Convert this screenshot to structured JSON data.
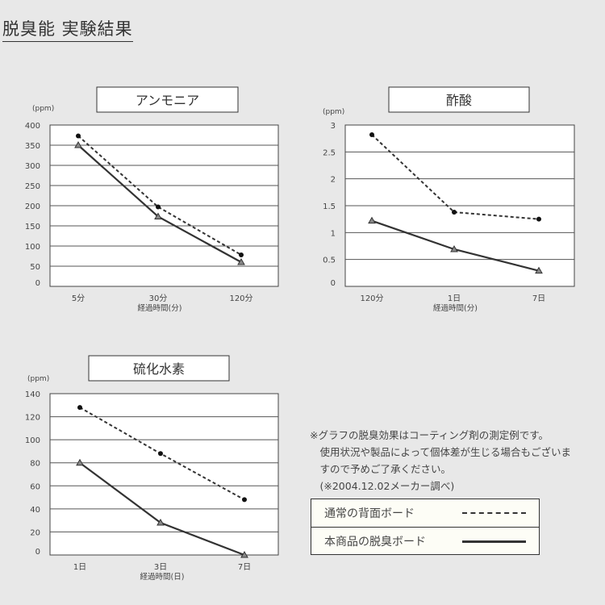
{
  "page_title": "脱臭能 実験結果",
  "note_lines": [
    "※グラフの脱臭効果はコーティング剤の測定例です。",
    "　使用状況や製品によって個体差が生じる場合もございま",
    "　すので予めご了承ください。",
    "　(※2004.12.02メーカー調べ)"
  ],
  "legend": [
    {
      "label": "通常の背面ボード",
      "style": "dashed",
      "marker": "circle"
    },
    {
      "label": "本商品の脱臭ボード",
      "style": "solid",
      "marker": "triangle"
    }
  ],
  "colors": {
    "background": "#e8e8e8",
    "line": "#333333",
    "grid": "#555555"
  },
  "chart_data": [
    {
      "type": "line",
      "title": "アンモニア",
      "ylabel": "(ppm)",
      "xlabel": "経過時間(分)",
      "categories": [
        "5分",
        "30分",
        "120分"
      ],
      "ylim": [
        0,
        400
      ],
      "yticks": [
        0,
        50,
        100,
        150,
        200,
        250,
        300,
        350,
        400
      ],
      "grid": true,
      "series": [
        {
          "style": "dashed",
          "values": [
            373,
            197,
            78
          ]
        },
        {
          "style": "solid",
          "values": [
            350,
            173,
            60
          ]
        }
      ]
    },
    {
      "type": "line",
      "title": "酢酸",
      "ylabel": "(ppm)",
      "xlabel": "経過時間(分)",
      "categories": [
        "120分",
        "1日",
        "7日"
      ],
      "ylim": [
        0,
        3
      ],
      "yticks": [
        0,
        0.5,
        1,
        1.5,
        2,
        2.5,
        3
      ],
      "grid": true,
      "series": [
        {
          "style": "dashed",
          "values": [
            2.82,
            1.38,
            1.25
          ]
        },
        {
          "style": "solid",
          "values": [
            1.22,
            0.69,
            0.29
          ]
        }
      ]
    },
    {
      "type": "line",
      "title": "硫化水素",
      "ylabel": "(ppm)",
      "xlabel": "経過時間(日)",
      "categories": [
        "1日",
        "3日",
        "7日"
      ],
      "ylim": [
        0,
        140
      ],
      "yticks": [
        0,
        20,
        40,
        60,
        80,
        100,
        120,
        140
      ],
      "grid": true,
      "series": [
        {
          "style": "dashed",
          "values": [
            128,
            88,
            48
          ]
        },
        {
          "style": "solid",
          "values": [
            80,
            28,
            0
          ]
        }
      ]
    }
  ]
}
